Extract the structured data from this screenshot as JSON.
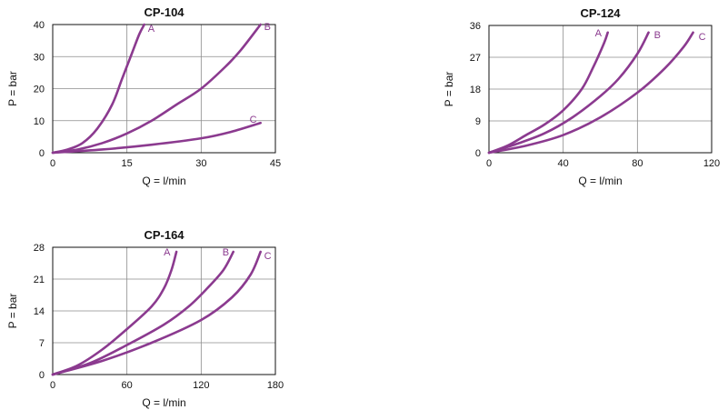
{
  "colors": {
    "curve": "#8b3a8f",
    "grid": "#8c8c8c",
    "frame": "#111111",
    "text": "#111111"
  },
  "chart_data": [
    {
      "type": "line",
      "title": "CP-104",
      "xlabel": "Q = l/min",
      "ylabel": "P = bar",
      "xlim": [
        0,
        45
      ],
      "ylim": [
        0,
        40
      ],
      "xticks": [
        0,
        15,
        30,
        45
      ],
      "yticks": [
        0,
        10,
        20,
        30,
        40
      ],
      "grid": true,
      "series": [
        {
          "name": "A",
          "x": [
            0,
            3,
            6,
            9,
            12,
            14,
            16,
            17.5,
            18.5
          ],
          "y": [
            0,
            1,
            3,
            7.5,
            15,
            23,
            31,
            37,
            40
          ]
        },
        {
          "name": "B",
          "x": [
            0,
            5,
            10,
            15,
            20,
            25,
            30,
            35,
            38,
            42
          ],
          "y": [
            0,
            1,
            3,
            6,
            10,
            15,
            20,
            27,
            32,
            40
          ]
        },
        {
          "name": "C",
          "x": [
            0,
            10,
            20,
            30,
            36,
            42
          ],
          "y": [
            0,
            1,
            2.5,
            4.5,
            6.5,
            9.3
          ]
        }
      ]
    },
    {
      "type": "line",
      "title": "CP-124",
      "xlabel": "Q = l/min",
      "ylabel": "P = bar",
      "xlim": [
        0,
        120
      ],
      "ylim": [
        0,
        36
      ],
      "xticks": [
        0,
        40,
        80,
        120
      ],
      "yticks": [
        0,
        9,
        18,
        27,
        36
      ],
      "grid": true,
      "series": [
        {
          "name": "A",
          "x": [
            0,
            10,
            20,
            30,
            40,
            50,
            56,
            62,
            64
          ],
          "y": [
            0,
            2,
            5,
            8,
            12,
            18,
            24,
            31,
            34
          ]
        },
        {
          "name": "B",
          "x": [
            0,
            15,
            30,
            45,
            60,
            70,
            80,
            86
          ],
          "y": [
            0,
            2.5,
            5.5,
            10,
            16,
            21,
            28,
            34
          ]
        },
        {
          "name": "C",
          "x": [
            0,
            20,
            40,
            60,
            80,
            95,
            105,
            110
          ],
          "y": [
            0,
            2,
            5,
            10,
            17,
            24,
            30,
            34
          ]
        }
      ]
    },
    {
      "type": "line",
      "title": "CP-164",
      "xlabel": "Q = l/min",
      "ylabel": "P = bar",
      "xlim": [
        0,
        180
      ],
      "ylim": [
        0,
        28
      ],
      "xticks": [
        0,
        60,
        120,
        180
      ],
      "yticks": [
        0,
        7,
        14,
        21,
        28
      ],
      "grid": true,
      "series": [
        {
          "name": "A",
          "x": [
            0,
            20,
            40,
            60,
            80,
            90,
            96,
            100
          ],
          "y": [
            0,
            2,
            5.5,
            10,
            15,
            19,
            23,
            27
          ]
        },
        {
          "name": "B",
          "x": [
            0,
            30,
            60,
            90,
            110,
            125,
            138,
            146
          ],
          "y": [
            0,
            2.5,
            6.5,
            11,
            15,
            19,
            23,
            27
          ]
        },
        {
          "name": "C",
          "x": [
            0,
            40,
            80,
            120,
            145,
            160,
            168
          ],
          "y": [
            0,
            3,
            7,
            12,
            17,
            22,
            27
          ]
        }
      ]
    }
  ]
}
